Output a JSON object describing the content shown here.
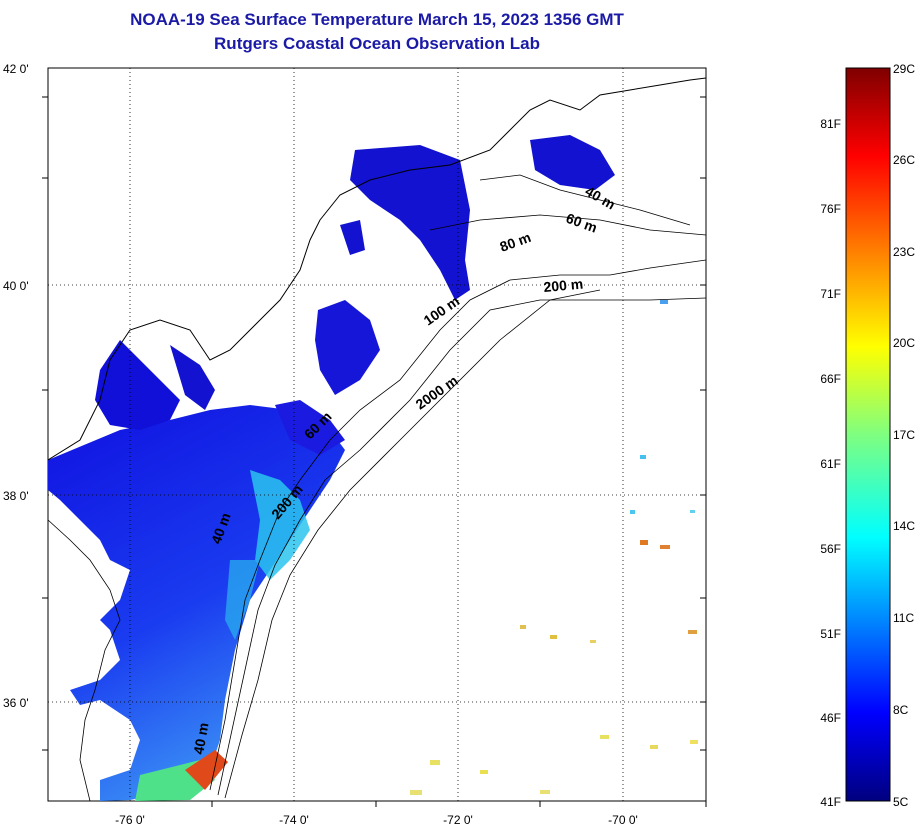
{
  "title": "NOAA-19 Sea Surface Temperature March 15, 2023 1356 GMT",
  "subtitle": "Rutgers Coastal Ocean Observation Lab",
  "map": {
    "lat_labels": [
      "42 0'",
      "40 0'",
      "38 0'",
      "36 0'"
    ],
    "lon_labels": [
      "-76 0'",
      "-74 0'",
      "-72 0'",
      "-70 0'"
    ],
    "grid": "dotted",
    "contour_labels": [
      "40 m",
      "60 m",
      "80 m",
      "200 m",
      "100 m",
      "2000 m",
      "60 m",
      "200 m",
      "40 m",
      "40 m"
    ]
  },
  "colorbar": {
    "celsius_labels": [
      "29C",
      "26C",
      "23C",
      "20C",
      "17C",
      "14C",
      "11C",
      "8C",
      "5C"
    ],
    "fahrenheit_labels": [
      "81F",
      "76F",
      "71F",
      "66F",
      "61F",
      "56F",
      "51F",
      "46F",
      "41F"
    ],
    "colors": [
      "#00007f",
      "#0000ff",
      "#007fff",
      "#00ffff",
      "#7fff7f",
      "#ffff00",
      "#ff7f00",
      "#ff0000",
      "#7f0000"
    ]
  }
}
